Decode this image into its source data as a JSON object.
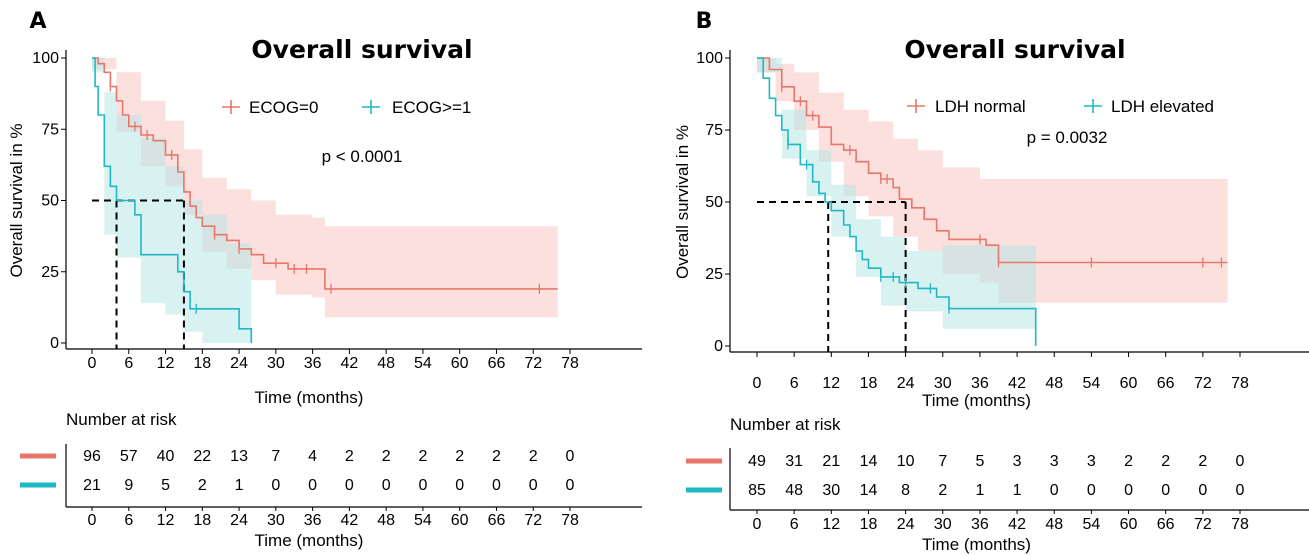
{
  "chart_data": [
    {
      "type": "line",
      "panel_label": "A",
      "title": "Overall survival",
      "xlabel": "Time (months)",
      "ylabel": "Overall survival in %",
      "xlim": [
        0,
        78
      ],
      "ylim": [
        0,
        100
      ],
      "x_ticks": [
        0,
        6,
        12,
        18,
        24,
        30,
        36,
        42,
        48,
        54,
        60,
        66,
        72,
        78
      ],
      "y_ticks": [
        0,
        25,
        50,
        75,
        100
      ],
      "legend_position": "top-center",
      "p_value_text": "p < 0.0001",
      "median_lines": [
        4,
        15
      ],
      "series": [
        {
          "name": "ECOG=0",
          "color": "#e8766b",
          "fill": "#f8c6c3",
          "steps": [
            [
              0,
              100
            ],
            [
              1,
              98
            ],
            [
              2,
              95
            ],
            [
              3,
              90
            ],
            [
              4,
              85
            ],
            [
              5,
              80
            ],
            [
              6,
              76
            ],
            [
              8,
              73
            ],
            [
              10,
              71
            ],
            [
              12,
              66
            ],
            [
              14,
              60
            ],
            [
              15,
              53
            ],
            [
              16,
              48
            ],
            [
              17,
              44
            ],
            [
              18,
              41
            ],
            [
              20,
              38
            ],
            [
              22,
              36
            ],
            [
              24,
              33
            ],
            [
              26,
              31
            ],
            [
              28,
              28
            ],
            [
              32,
              26
            ],
            [
              38,
              19
            ],
            [
              76,
              19
            ]
          ],
          "ci_upper": [
            [
              0,
              100
            ],
            [
              4,
              95
            ],
            [
              8,
              85
            ],
            [
              12,
              78
            ],
            [
              15,
              68
            ],
            [
              18,
              58
            ],
            [
              22,
              54
            ],
            [
              26,
              50
            ],
            [
              30,
              45
            ],
            [
              36,
              44
            ],
            [
              38,
              41
            ],
            [
              76,
              41
            ]
          ],
          "ci_lower": [
            [
              0,
              96
            ],
            [
              4,
              74
            ],
            [
              8,
              62
            ],
            [
              12,
              55
            ],
            [
              15,
              45
            ],
            [
              18,
              32
            ],
            [
              22,
              26
            ],
            [
              26,
              22
            ],
            [
              30,
              17
            ],
            [
              36,
              16
            ],
            [
              38,
              9
            ],
            [
              76,
              9
            ]
          ],
          "censor_x": [
            3,
            7,
            9,
            13,
            20,
            24,
            30,
            33,
            35,
            39,
            73
          ]
        },
        {
          "name": "ECOG>=1",
          "color": "#1fb9c4",
          "fill": "#b8e6e6",
          "steps": [
            [
              0,
              100
            ],
            [
              0.5,
              90
            ],
            [
              1,
              80
            ],
            [
              2,
              62
            ],
            [
              3,
              55
            ],
            [
              4,
              50
            ],
            [
              7,
              45
            ],
            [
              8,
              31
            ],
            [
              12,
              31
            ],
            [
              14,
              25
            ],
            [
              15,
              18
            ],
            [
              16,
              12
            ],
            [
              22,
              12
            ],
            [
              24,
              5
            ],
            [
              26,
              0
            ]
          ],
          "ci_upper": [
            [
              0,
              100
            ],
            [
              2,
              88
            ],
            [
              4,
              80
            ],
            [
              8,
              72
            ],
            [
              12,
              62
            ],
            [
              15,
              50
            ],
            [
              18,
              45
            ],
            [
              22,
              35
            ],
            [
              26,
              30
            ]
          ],
          "ci_lower": [
            [
              0,
              95
            ],
            [
              2,
              38
            ],
            [
              4,
              30
            ],
            [
              8,
              14
            ],
            [
              12,
              10
            ],
            [
              15,
              4
            ],
            [
              18,
              0
            ],
            [
              26,
              0
            ]
          ],
          "censor_x": [
            17
          ]
        }
      ],
      "risk_table": {
        "header": "Number at risk",
        "xlabel": "Time (months)",
        "rows": [
          {
            "color": "#e8766b",
            "values": [
              "96",
              "57",
              "40",
              "22",
              "13",
              "7",
              "4",
              "2",
              "2",
              "2",
              "2",
              "2",
              "2",
              "0"
            ]
          },
          {
            "color": "#1fb9c4",
            "values": [
              "21",
              "9",
              "5",
              "2",
              "1",
              "0",
              "0",
              "0",
              "0",
              "0",
              "0",
              "0",
              "0",
              "0"
            ]
          }
        ]
      }
    },
    {
      "type": "line",
      "panel_label": "B",
      "title": "Overall survival",
      "xlabel": "Time (months)",
      "ylabel": "Overall survival in %",
      "xlim": [
        0,
        78
      ],
      "ylim": [
        0,
        100
      ],
      "x_ticks": [
        0,
        6,
        12,
        18,
        24,
        30,
        36,
        42,
        48,
        54,
        60,
        66,
        72,
        78
      ],
      "y_ticks": [
        0,
        25,
        50,
        75,
        100
      ],
      "legend_position": "top-center",
      "p_value_text": "p = 0.0032",
      "median_lines": [
        11.5,
        24
      ],
      "series": [
        {
          "name": "LDH normal",
          "color": "#e8766b",
          "fill": "#f8c6c3",
          "steps": [
            [
              0,
              100
            ],
            [
              2,
              96
            ],
            [
              4,
              90
            ],
            [
              6,
              85
            ],
            [
              8,
              80
            ],
            [
              10,
              76
            ],
            [
              12,
              70
            ],
            [
              14,
              68
            ],
            [
              16,
              64
            ],
            [
              18,
              60
            ],
            [
              20,
              58
            ],
            [
              22,
              55
            ],
            [
              23,
              51
            ],
            [
              25,
              48
            ],
            [
              27,
              44
            ],
            [
              29,
              40
            ],
            [
              31,
              37
            ],
            [
              37,
              35
            ],
            [
              39,
              29
            ],
            [
              76,
              29
            ]
          ],
          "ci_upper": [
            [
              0,
              100
            ],
            [
              3,
              98
            ],
            [
              6,
              95
            ],
            [
              10,
              88
            ],
            [
              14,
              82
            ],
            [
              18,
              78
            ],
            [
              22,
              72
            ],
            [
              26,
              68
            ],
            [
              30,
              62
            ],
            [
              36,
              58
            ],
            [
              76,
              58
            ]
          ],
          "ci_lower": [
            [
              0,
              95
            ],
            [
              3,
              85
            ],
            [
              6,
              75
            ],
            [
              10,
              64
            ],
            [
              14,
              52
            ],
            [
              18,
              45
            ],
            [
              22,
              38
            ],
            [
              26,
              33
            ],
            [
              30,
              25
            ],
            [
              36,
              22
            ],
            [
              39,
              15
            ],
            [
              76,
              15
            ]
          ],
          "censor_x": [
            4,
            7,
            9,
            15,
            20,
            21,
            36,
            39,
            54,
            72,
            75
          ]
        },
        {
          "name": "LDH elevated",
          "color": "#1fb9c4",
          "fill": "#b8e6e6",
          "steps": [
            [
              0,
              100
            ],
            [
              1,
              93
            ],
            [
              2,
              86
            ],
            [
              3,
              80
            ],
            [
              4,
              75
            ],
            [
              5,
              70
            ],
            [
              7,
              63
            ],
            [
              9,
              57
            ],
            [
              10,
              53
            ],
            [
              11,
              50
            ],
            [
              12,
              47
            ],
            [
              14,
              42
            ],
            [
              15,
              38
            ],
            [
              16,
              33
            ],
            [
              17,
              30
            ],
            [
              18,
              27
            ],
            [
              20,
              24
            ],
            [
              23,
              22
            ],
            [
              26,
              20
            ],
            [
              29,
              17
            ],
            [
              31,
              13
            ],
            [
              45,
              13
            ],
            [
              45,
              0
            ]
          ],
          "ci_upper": [
            [
              0,
              100
            ],
            [
              4,
              82
            ],
            [
              8,
              68
            ],
            [
              12,
              56
            ],
            [
              16,
              44
            ],
            [
              20,
              38
            ],
            [
              24,
              33
            ],
            [
              30,
              35
            ],
            [
              45,
              35
            ]
          ],
          "ci_lower": [
            [
              0,
              95
            ],
            [
              4,
              65
            ],
            [
              8,
              52
            ],
            [
              12,
              38
            ],
            [
              16,
              24
            ],
            [
              20,
              14
            ],
            [
              24,
              12
            ],
            [
              30,
              6
            ],
            [
              45,
              4
            ]
          ],
          "censor_x": [
            5,
            8,
            20,
            22,
            24,
            28,
            31
          ]
        }
      ],
      "risk_table": {
        "header": "Number at risk",
        "xlabel": "Time (months)",
        "rows": [
          {
            "color": "#e8766b",
            "values": [
              "49",
              "31",
              "21",
              "14",
              "10",
              "7",
              "5",
              "3",
              "3",
              "3",
              "2",
              "2",
              "2",
              "0"
            ]
          },
          {
            "color": "#1fb9c4",
            "values": [
              "85",
              "48",
              "30",
              "14",
              "8",
              "2",
              "1",
              "1",
              "0",
              "0",
              "0",
              "0",
              "0",
              "0"
            ]
          }
        ]
      }
    }
  ]
}
